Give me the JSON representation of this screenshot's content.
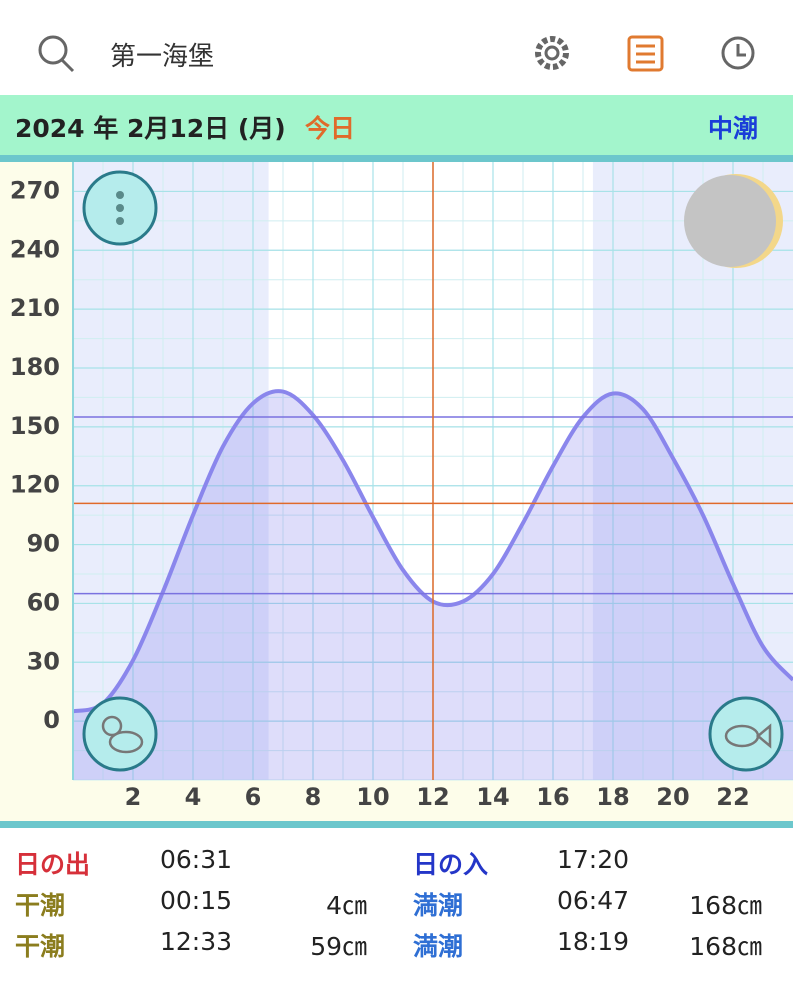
{
  "header": {
    "title": "第一海堡"
  },
  "date_bar": {
    "date": "2024 年 2月12日 (月)",
    "today": "今日",
    "tide_type": "中潮"
  },
  "chart_data": {
    "type": "line",
    "x": [
      0,
      1,
      2,
      3,
      4,
      5,
      6,
      7,
      8,
      9,
      10,
      11,
      12,
      13,
      14,
      15,
      16,
      17,
      18,
      19,
      20,
      21,
      22,
      23,
      24
    ],
    "series": [
      {
        "color": "#8a86ec",
        "values": [
          5,
          9,
          31,
          66,
          105,
          140,
          162,
          168,
          156,
          133,
          104,
          77,
          61,
          61,
          75,
          101,
          130,
          155,
          167,
          159,
          134,
          105,
          70,
          38,
          21
        ]
      }
    ],
    "xlim": [
      0,
      24
    ],
    "xticks": [
      2,
      4,
      6,
      8,
      10,
      12,
      14,
      16,
      18,
      20,
      22
    ],
    "ylim": [
      -30,
      285
    ],
    "yticks": [
      0,
      30,
      60,
      90,
      120,
      150,
      180,
      210,
      240,
      270
    ],
    "grid": true,
    "daylight_x": [
      6.52,
      17.33
    ],
    "now_x": 12,
    "now_y": 111,
    "reference_y": [
      155,
      65
    ]
  },
  "table": {
    "rows": [
      {
        "left": {
          "label": "日の出",
          "time": "06:31"
        },
        "right": {
          "label": "日の入",
          "time": "17:20"
        }
      },
      {
        "left": {
          "label": "干潮",
          "time": "00:15",
          "height": "4㎝"
        },
        "right": {
          "label": "満潮",
          "time": "06:47",
          "height": "168㎝"
        }
      },
      {
        "left": {
          "label": "干潮",
          "time": "12:33",
          "height": "59㎝"
        },
        "right": {
          "label": "満潮",
          "time": "18:19",
          "height": "168㎝"
        }
      }
    ]
  }
}
